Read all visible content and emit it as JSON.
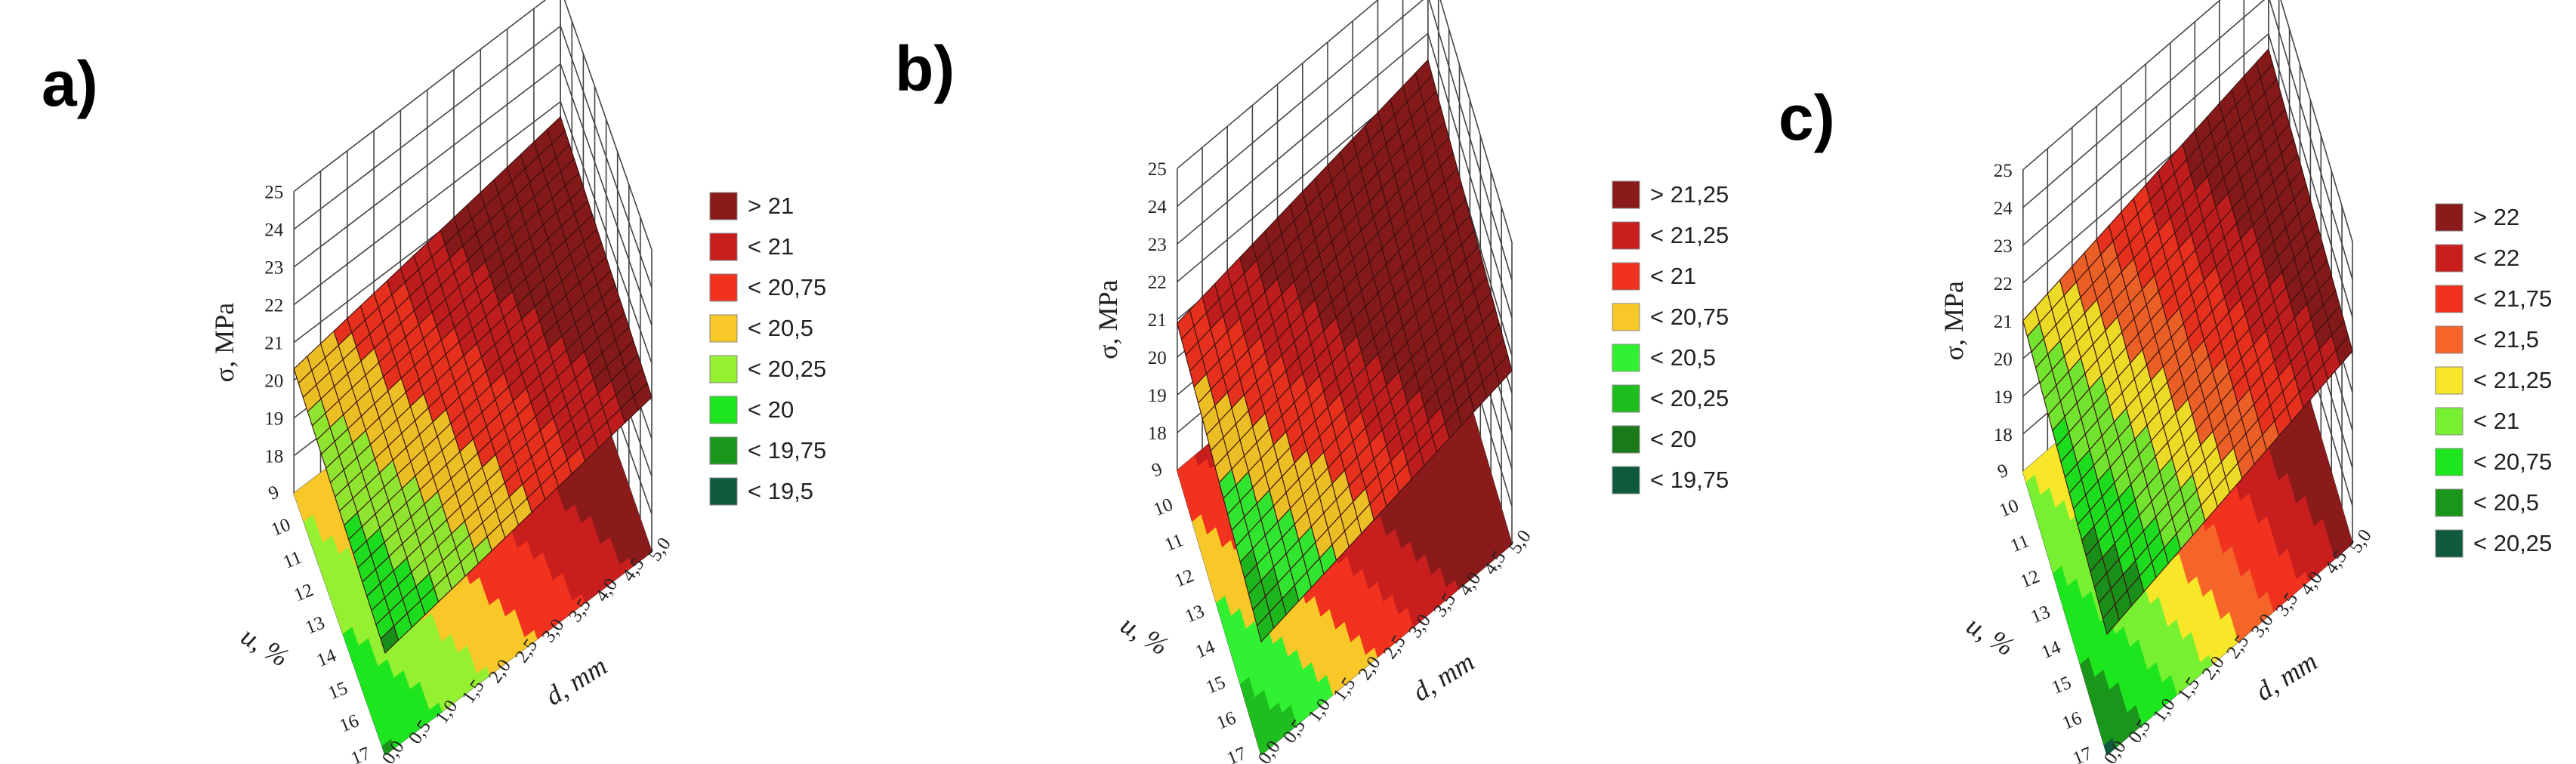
{
  "colors": {
    "grid": "#444444",
    "mesh": "#3a1010",
    "legend_border": "#888888"
  },
  "chart_data": [
    {
      "type": "surface3d",
      "panel_label": "a)",
      "z_label": "σ, MPa",
      "x_label": "u, %",
      "y_label": "d, mm",
      "x_ticks": [
        "17",
        "16",
        "15",
        "14",
        "13",
        "12",
        "11",
        "10",
        "9"
      ],
      "y_ticks": [
        "0,0",
        "0,5",
        "1,0",
        "1,5",
        "2,0",
        "2,5",
        "3,0",
        "3,5",
        "4,0",
        "4,5",
        "5,0"
      ],
      "z_ticks": [
        "18",
        "19",
        "20",
        "21",
        "22",
        "23",
        "24",
        "25"
      ],
      "x_range": [
        9,
        17
      ],
      "y_range": [
        0,
        5
      ],
      "z_range": [
        17,
        25
      ],
      "surface": {
        "corner_x17_d0": 19.7,
        "corner_x9_d0": 20.3,
        "corner_x17_d5": 21.1,
        "corner_x9_d5": 21.6
      },
      "legend": [
        {
          "label": "> 21",
          "color": "#8b1a1a"
        },
        {
          "label": "< 21",
          "color": "#c81e1e"
        },
        {
          "label": "< 20,75",
          "color": "#f0321e"
        },
        {
          "label": "< 20,5",
          "color": "#f8c828"
        },
        {
          "label": "< 20,25",
          "color": "#96f032"
        },
        {
          "label": "< 20",
          "color": "#1ee61e"
        },
        {
          "label": "< 19,75",
          "color": "#1a961a"
        },
        {
          "label": "< 19,5",
          "color": "#0f5a3c"
        }
      ]
    },
    {
      "type": "surface3d",
      "panel_label": "b)",
      "z_label": "σ, MPa",
      "x_label": "u, %",
      "y_label": "d, mm",
      "x_ticks": [
        "17",
        "16",
        "15",
        "14",
        "13",
        "12",
        "11",
        "10",
        "9"
      ],
      "y_ticks": [
        "0,0",
        "0,5",
        "1,0",
        "1,5",
        "2,0",
        "2,5",
        "3,0",
        "3,5",
        "4,0",
        "4,5",
        "5,0"
      ],
      "z_ticks": [
        "18",
        "19",
        "20",
        "21",
        "22",
        "23",
        "24",
        "25"
      ],
      "x_range": [
        9,
        17
      ],
      "y_range": [
        0,
        5
      ],
      "z_range": [
        17,
        25
      ],
      "surface": {
        "corner_x17_d0": 20.0,
        "corner_x9_d0": 20.9,
        "corner_x17_d5": 21.6,
        "corner_x9_d5": 22.3
      },
      "legend": [
        {
          "label": "> 21,25",
          "color": "#8b1a1a"
        },
        {
          "label": "< 21,25",
          "color": "#c81e1e"
        },
        {
          "label": "< 21",
          "color": "#f0321e"
        },
        {
          "label": "< 20,75",
          "color": "#f8c828"
        },
        {
          "label": "< 20,5",
          "color": "#32f032"
        },
        {
          "label": "< 20,25",
          "color": "#1ebe1e"
        },
        {
          "label": "< 20",
          "color": "#1a7a1a"
        },
        {
          "label": "< 19,75",
          "color": "#0f5a3c"
        }
      ]
    },
    {
      "type": "surface3d",
      "panel_label": "c)",
      "z_label": "σ, MPa",
      "x_label": "u, %",
      "y_label": "d, mm",
      "x_ticks": [
        "17",
        "16",
        "15",
        "14",
        "13",
        "12",
        "11",
        "10",
        "9"
      ],
      "y_ticks": [
        "0,0",
        "0,5",
        "1,0",
        "1,5",
        "2,0",
        "2,5",
        "3,0",
        "3,5",
        "4,0",
        "4,5",
        "5,0"
      ],
      "z_ticks": [
        "18",
        "19",
        "20",
        "21",
        "22",
        "23",
        "24",
        "25"
      ],
      "x_range": [
        9,
        17
      ],
      "y_range": [
        0,
        5
      ],
      "z_range": [
        17,
        25
      ],
      "surface": {
        "corner_x17_d0": 20.2,
        "corner_x9_d0": 21.0,
        "corner_x17_d5": 22.1,
        "corner_x9_d5": 22.6
      },
      "legend": [
        {
          "label": "> 22",
          "color": "#8b1a1a"
        },
        {
          "label": "< 22",
          "color": "#c81e1e"
        },
        {
          "label": "< 21,75",
          "color": "#f0321e"
        },
        {
          "label": "< 21,5",
          "color": "#f56428"
        },
        {
          "label": "< 21,25",
          "color": "#f8e628"
        },
        {
          "label": "< 21",
          "color": "#78f032"
        },
        {
          "label": "< 20,75",
          "color": "#1ee61e"
        },
        {
          "label": "< 20,5",
          "color": "#1a961a"
        },
        {
          "label": "< 20,25",
          "color": "#0f5a3c"
        }
      ]
    }
  ]
}
